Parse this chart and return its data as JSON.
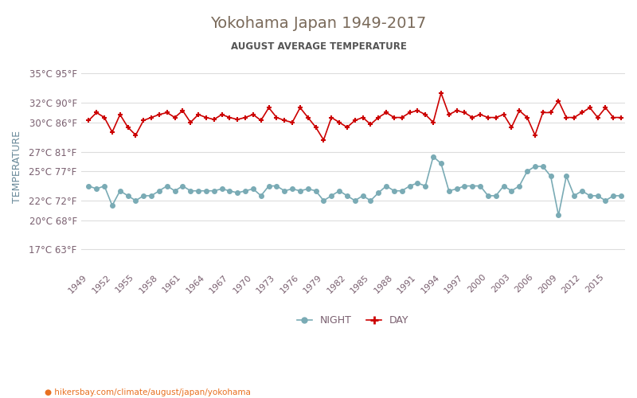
{
  "title": "Yokohama Japan 1949-2017",
  "subtitle": "AUGUST AVERAGE TEMPERATURE",
  "ylabel": "TEMPERATURE",
  "url_text": "hikersbay.com/climate/august/japan/yokohama",
  "title_color": "#7a6a5a",
  "subtitle_color": "#555555",
  "ylabel_color": "#6a8a9a",
  "axis_label_color": "#7a6070",
  "grid_color": "#dddddd",
  "background_color": "#ffffff",
  "years": [
    1949,
    1950,
    1951,
    1952,
    1953,
    1954,
    1955,
    1956,
    1957,
    1958,
    1959,
    1960,
    1961,
    1962,
    1963,
    1964,
    1965,
    1966,
    1967,
    1968,
    1969,
    1970,
    1971,
    1972,
    1973,
    1974,
    1975,
    1976,
    1977,
    1978,
    1979,
    1980,
    1981,
    1982,
    1983,
    1984,
    1985,
    1986,
    1987,
    1988,
    1989,
    1990,
    1991,
    1992,
    1993,
    1994,
    1995,
    1996,
    1997,
    1998,
    1999,
    2000,
    2001,
    2002,
    2003,
    2004,
    2005,
    2006,
    2007,
    2008,
    2009,
    2010,
    2011,
    2012,
    2013,
    2014,
    2015,
    2016,
    2017
  ],
  "day_temps": [
    30.2,
    31.0,
    30.5,
    29.0,
    30.8,
    29.5,
    28.7,
    30.2,
    30.5,
    30.8,
    31.0,
    30.5,
    31.2,
    30.0,
    30.8,
    30.5,
    30.3,
    30.8,
    30.5,
    30.3,
    30.5,
    30.8,
    30.2,
    31.5,
    30.5,
    30.2,
    30.0,
    31.5,
    30.5,
    29.5,
    28.2,
    30.5,
    30.0,
    29.5,
    30.2,
    30.5,
    29.8,
    30.5,
    31.0,
    30.5,
    30.5,
    31.0,
    31.2,
    30.8,
    30.0,
    33.0,
    30.8,
    31.2,
    31.0,
    30.5,
    30.8,
    30.5,
    30.5,
    30.8,
    29.5,
    31.2,
    30.5,
    28.7,
    31.0,
    31.0,
    32.2,
    30.5,
    30.5,
    31.0,
    31.5,
    30.5,
    31.5,
    30.5,
    30.5
  ],
  "night_temps": [
    23.5,
    23.2,
    23.5,
    21.5,
    23.0,
    22.5,
    22.0,
    22.5,
    22.5,
    23.0,
    23.5,
    23.0,
    23.5,
    23.0,
    23.0,
    23.0,
    23.0,
    23.2,
    23.0,
    22.8,
    23.0,
    23.2,
    22.5,
    23.5,
    23.5,
    23.0,
    23.2,
    23.0,
    23.2,
    23.0,
    22.0,
    22.5,
    23.0,
    22.5,
    22.0,
    22.5,
    22.0,
    22.8,
    23.5,
    23.0,
    23.0,
    23.5,
    23.8,
    23.5,
    26.5,
    25.8,
    23.0,
    23.2,
    23.5,
    23.5,
    23.5,
    22.5,
    22.5,
    23.5,
    23.0,
    23.5,
    25.0,
    25.5,
    25.5,
    24.5,
    20.5,
    24.5,
    22.5,
    23.0,
    22.5,
    22.5,
    22.0,
    22.5,
    22.5
  ],
  "day_color": "#cc0000",
  "night_color": "#7aabb5",
  "day_marker": "+",
  "night_marker": "o",
  "yticks_c": [
    17,
    20,
    22,
    25,
    27,
    30,
    32,
    35
  ],
  "yticks_f": [
    63,
    68,
    72,
    77,
    81,
    86,
    90,
    95
  ],
  "xtick_years": [
    1949,
    1952,
    1955,
    1958,
    1961,
    1964,
    1967,
    1970,
    1973,
    1976,
    1979,
    1982,
    1985,
    1988,
    1991,
    1994,
    1997,
    2000,
    2003,
    2006,
    2009,
    2012,
    2015
  ]
}
